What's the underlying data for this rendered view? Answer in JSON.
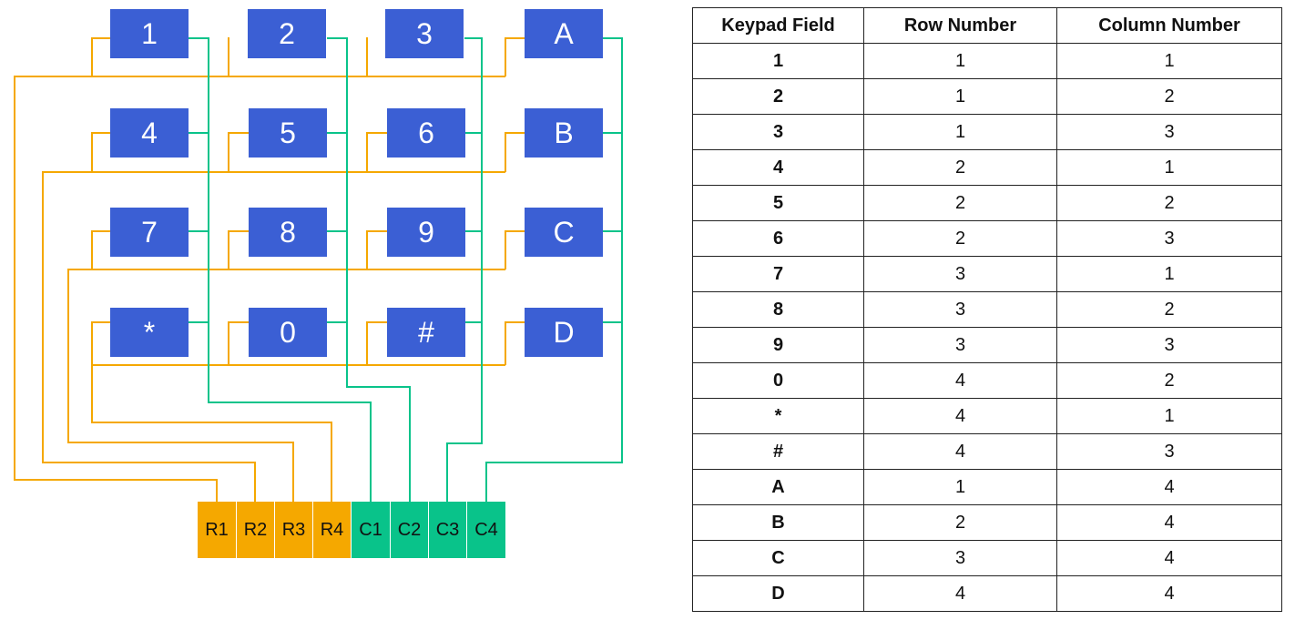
{
  "keypad": {
    "keys": [
      "1",
      "2",
      "3",
      "A",
      "4",
      "5",
      "6",
      "B",
      "7",
      "8",
      "9",
      "C",
      "*",
      "0",
      "#",
      "D"
    ],
    "pins": [
      "R1",
      "R2",
      "R3",
      "R4",
      "C1",
      "C2",
      "C3",
      "C4"
    ],
    "colors": {
      "key": "#3b5fd4",
      "row_wire": "#f5a800",
      "col_wire": "#09c38a"
    }
  },
  "table": {
    "headers": [
      "Keypad Field",
      "Row Number",
      "Column Number"
    ],
    "rows": [
      [
        "1",
        "1",
        "1"
      ],
      [
        "2",
        "1",
        "2"
      ],
      [
        "3",
        "1",
        "3"
      ],
      [
        "4",
        "2",
        "1"
      ],
      [
        "5",
        "2",
        "2"
      ],
      [
        "6",
        "2",
        "3"
      ],
      [
        "7",
        "3",
        "1"
      ],
      [
        "8",
        "3",
        "2"
      ],
      [
        "9",
        "3",
        "3"
      ],
      [
        "0",
        "4",
        "2"
      ],
      [
        "*",
        "4",
        "1"
      ],
      [
        "#",
        "4",
        "3"
      ],
      [
        "A",
        "1",
        "4"
      ],
      [
        "B",
        "2",
        "4"
      ],
      [
        "C",
        "3",
        "4"
      ],
      [
        "D",
        "4",
        "4"
      ]
    ]
  }
}
